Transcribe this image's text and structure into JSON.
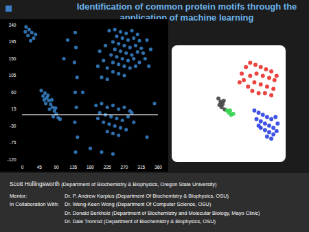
{
  "chart_data": [
    {
      "type": "scatter",
      "title": "Identification of common protein motifs through the application of machine learning",
      "color": "#3f95e6",
      "xlim": [
        0,
        360
      ],
      "xticks": [
        0,
        45,
        90,
        135,
        180,
        225,
        270,
        315,
        360
      ],
      "ylim": [
        -120,
        240
      ],
      "yticks": [
        -120,
        -75,
        -30,
        15,
        60,
        105,
        150,
        195,
        240
      ],
      "hline": 0,
      "grid": false,
      "values": [
        [
          10,
          235
        ],
        [
          18,
          228
        ],
        [
          25,
          220
        ],
        [
          15,
          212
        ],
        [
          30,
          205
        ],
        [
          22,
          198
        ],
        [
          8,
          222
        ],
        [
          35,
          215
        ],
        [
          230,
          225
        ],
        [
          245,
          228
        ],
        [
          260,
          222
        ],
        [
          275,
          218
        ],
        [
          290,
          225
        ],
        [
          305,
          215
        ],
        [
          250,
          210
        ],
        [
          265,
          205
        ],
        [
          280,
          200
        ],
        [
          295,
          205
        ],
        [
          310,
          198
        ],
        [
          240,
          195
        ],
        [
          255,
          190
        ],
        [
          270,
          185
        ],
        [
          285,
          180
        ],
        [
          300,
          185
        ],
        [
          315,
          178
        ],
        [
          245,
          175
        ],
        [
          260,
          170
        ],
        [
          275,
          165
        ],
        [
          290,
          160
        ],
        [
          305,
          168
        ],
        [
          320,
          165
        ],
        [
          235,
          160
        ],
        [
          250,
          155
        ],
        [
          265,
          150
        ],
        [
          280,
          145
        ],
        [
          295,
          150
        ],
        [
          310,
          140
        ],
        [
          325,
          150
        ],
        [
          240,
          140
        ],
        [
          255,
          135
        ],
        [
          270,
          130
        ],
        [
          285,
          125
        ],
        [
          300,
          130
        ],
        [
          225,
          125
        ],
        [
          240,
          115
        ],
        [
          255,
          110
        ],
        [
          270,
          105
        ],
        [
          210,
          100
        ],
        [
          225,
          95
        ],
        [
          200,
          130
        ],
        [
          215,
          145
        ],
        [
          205,
          170
        ],
        [
          220,
          185
        ],
        [
          335,
          130
        ],
        [
          330,
          200
        ],
        [
          340,
          175
        ],
        [
          50,
          65
        ],
        [
          60,
          58
        ],
        [
          55,
          50
        ],
        [
          65,
          45
        ],
        [
          70,
          38
        ],
        [
          62,
          30
        ],
        [
          75,
          28
        ],
        [
          80,
          20
        ],
        [
          72,
          15
        ],
        [
          85,
          10
        ],
        [
          90,
          2
        ],
        [
          82,
          -5
        ],
        [
          95,
          -8
        ],
        [
          68,
          52
        ],
        [
          78,
          40
        ],
        [
          58,
          40
        ],
        [
          88,
          18
        ],
        [
          100,
          -12
        ],
        [
          195,
          25
        ],
        [
          210,
          30
        ],
        [
          225,
          20
        ],
        [
          240,
          25
        ],
        [
          255,
          15
        ],
        [
          270,
          20
        ],
        [
          285,
          10
        ],
        [
          205,
          5
        ],
        [
          220,
          0
        ],
        [
          235,
          -5
        ],
        [
          250,
          -10
        ],
        [
          265,
          -15
        ],
        [
          280,
          -5
        ],
        [
          295,
          -20
        ],
        [
          215,
          -20
        ],
        [
          230,
          -25
        ],
        [
          245,
          -30
        ],
        [
          260,
          -35
        ],
        [
          275,
          -40
        ],
        [
          240,
          -50
        ],
        [
          255,
          -55
        ],
        [
          225,
          -45
        ],
        [
          200,
          -10
        ],
        [
          290,
          5
        ],
        [
          140,
          220
        ],
        [
          142,
          180
        ],
        [
          138,
          140
        ],
        [
          145,
          100
        ],
        [
          140,
          60
        ],
        [
          143,
          20
        ],
        [
          139,
          -20
        ],
        [
          146,
          -60
        ],
        [
          141,
          -100
        ],
        [
          180,
          -90
        ],
        [
          210,
          -100
        ],
        [
          240,
          -105
        ],
        [
          110,
          150
        ],
        [
          120,
          200
        ],
        [
          160,
          60
        ],
        [
          330,
          -60
        ],
        [
          350,
          30
        ]
      ]
    },
    {
      "type": "scatter",
      "tick_labels": false,
      "xlim": [
        0,
        100
      ],
      "ylim": [
        0,
        100
      ],
      "series": [
        {
          "color": "#e8231f",
          "values": [
            [
              62,
              78
            ],
            [
              66,
              84
            ],
            [
              70,
              88
            ],
            [
              75,
              86
            ],
            [
              80,
              84
            ],
            [
              85,
              82
            ],
            [
              90,
              80
            ],
            [
              64,
              72
            ],
            [
              70,
              76
            ],
            [
              76,
              78
            ],
            [
              82,
              76
            ],
            [
              88,
              74
            ],
            [
              93,
              72
            ],
            [
              68,
              66
            ],
            [
              74,
              70
            ],
            [
              80,
              68
            ],
            [
              86,
              66
            ],
            [
              92,
              64
            ],
            [
              72,
              62
            ],
            [
              78,
              60
            ],
            [
              84,
              60
            ],
            [
              90,
              58
            ],
            [
              95,
              76
            ],
            [
              60,
              70
            ]
          ]
        },
        {
          "color": "#3a3a3a",
          "values": [
            [
              40,
              55
            ],
            [
              42,
              52
            ],
            [
              44,
              50
            ],
            [
              43,
              47
            ],
            [
              46,
              45
            ],
            [
              41,
              49
            ],
            [
              45,
              53
            ]
          ]
        },
        {
          "color": "#2fd24a",
          "values": [
            [
              48,
              44
            ],
            [
              50,
              42
            ],
            [
              52,
              40
            ],
            [
              51,
              44
            ],
            [
              54,
              41
            ]
          ]
        },
        {
          "color": "#1f35e0",
          "values": [
            [
              74,
              44
            ],
            [
              78,
              42
            ],
            [
              82,
              40
            ],
            [
              86,
              38
            ],
            [
              90,
              36
            ],
            [
              76,
              36
            ],
            [
              80,
              34
            ],
            [
              84,
              32
            ],
            [
              88,
              30
            ],
            [
              92,
              28
            ],
            [
              80,
              28
            ],
            [
              84,
              26
            ],
            [
              88,
              24
            ],
            [
              92,
              22
            ],
            [
              95,
              25
            ],
            [
              96,
              32
            ],
            [
              86,
              20
            ],
            [
              90,
              18
            ],
            [
              78,
              30
            ],
            [
              94,
              38
            ]
          ]
        }
      ]
    }
  ],
  "footer": {
    "author": "Scott Hollingsworth",
    "affiliation": "(Department of Biochemistry & Biophysics, Oregon State University)",
    "rows": [
      {
        "label": "Mentor:",
        "text": "Dr. P. Andrew Karplus (Department Of Biochemistry & Biophysics, OSU)"
      },
      {
        "label": "In Collaboration With:",
        "text": "Dr. Weng-Keen Wong (Department Of Computer Science, OSU)"
      },
      {
        "label": null,
        "text": "Dr. Donald Berkholz (Department of Biochemistry and Molecular Biology, Mayo Clinic)"
      },
      {
        "label": null,
        "text": "Dr. Dale Tronrod (Department of Biochemistry & Biophysics, OSU)"
      }
    ]
  }
}
